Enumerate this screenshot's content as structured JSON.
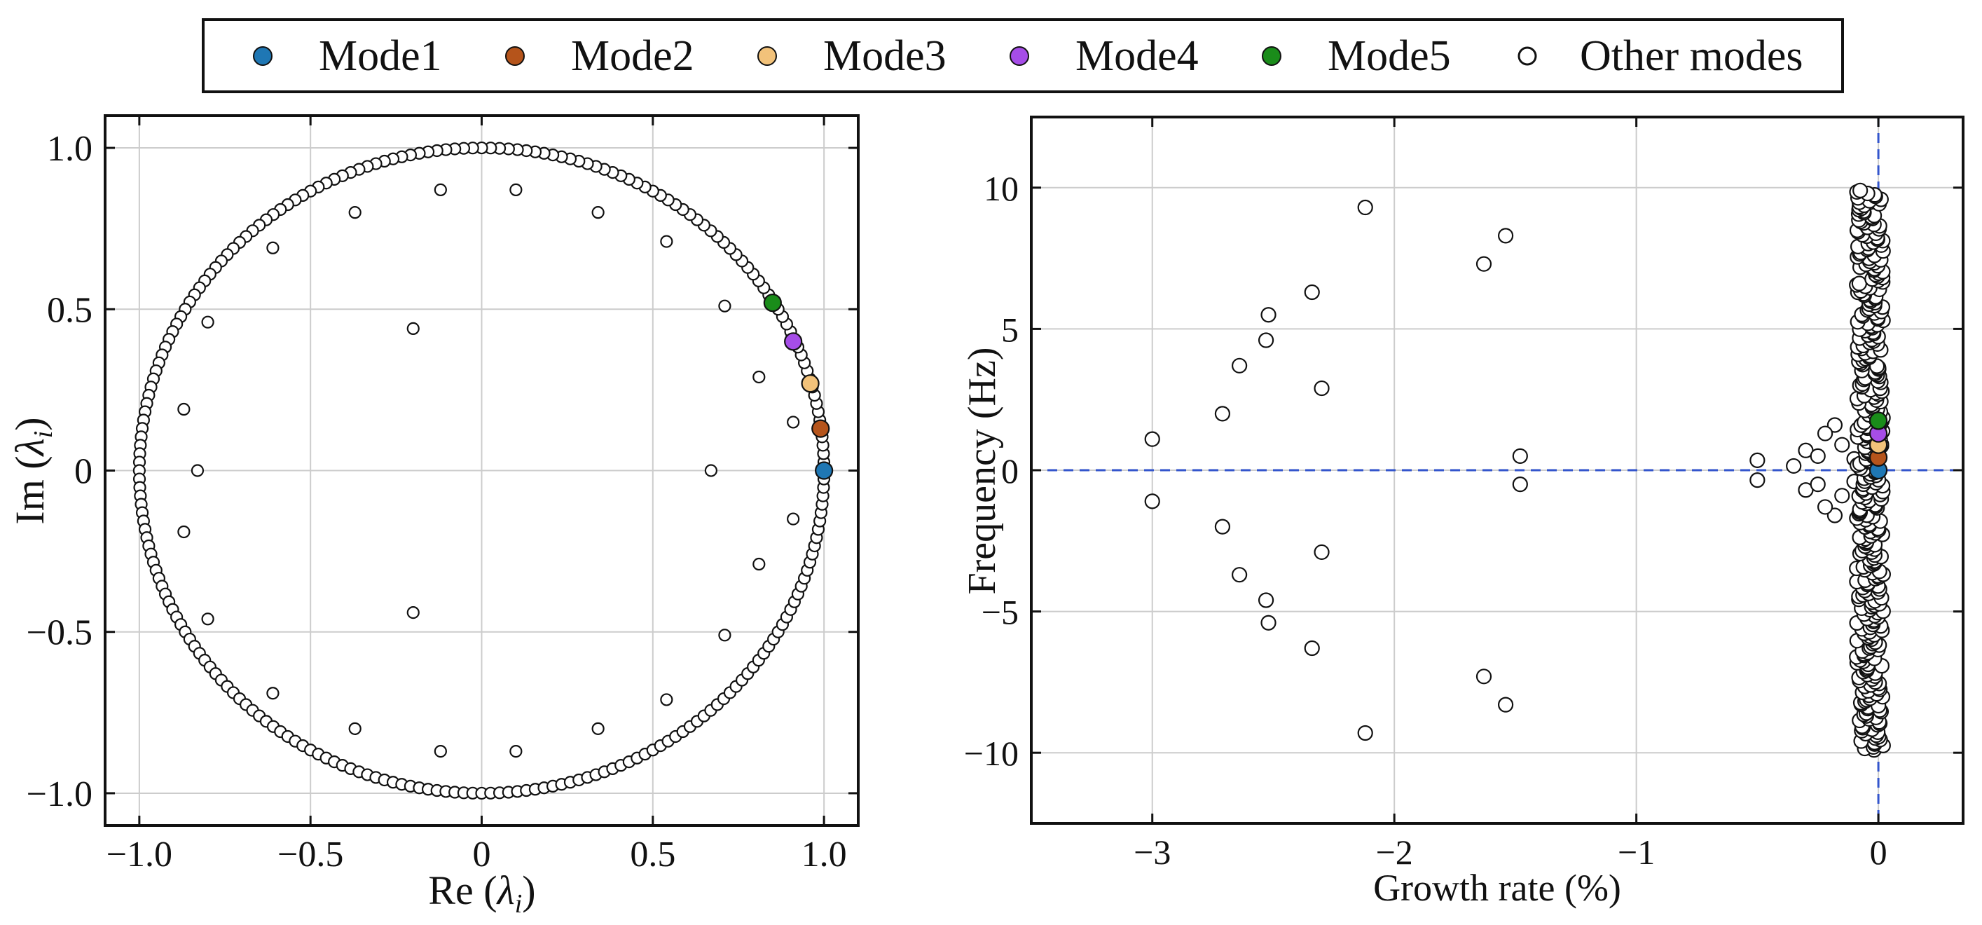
{
  "colors": {
    "mode1": "#1f77b4",
    "mode2": "#b5541b",
    "mode3": "#f2c27a",
    "mode4": "#a64de8",
    "mode5": "#1a8c1a",
    "other_face": "#ffffff",
    "marker_edge": "#111111",
    "grid": "#cccccc",
    "zero_line": "#3355cc"
  },
  "chart_data": [
    {
      "type": "scatter",
      "panel": "left",
      "title": "",
      "xlabel": "Re (λi)",
      "ylabel": "Im (λi)",
      "xlim": [
        -1.1,
        1.1
      ],
      "ylim": [
        -1.1,
        1.1
      ],
      "xticks": [
        -1.0,
        -0.5,
        0,
        0.5,
        1.0
      ],
      "xtick_labels": [
        "−1.0",
        "−0.5",
        "0",
        "0.5",
        "1.0"
      ],
      "yticks": [
        -1.0,
        -0.5,
        0,
        0.5,
        1.0
      ],
      "ytick_labels": [
        "−1.0",
        "−0.5",
        "0",
        "0.5",
        "1.0"
      ],
      "grid": true,
      "unit_circle_points": 240,
      "inner_points": [
        [
          0.1,
          0.87
        ],
        [
          -0.12,
          0.87
        ],
        [
          0.34,
          0.8
        ],
        [
          -0.37,
          0.8
        ],
        [
          0.54,
          0.71
        ],
        [
          -0.61,
          0.69
        ],
        [
          0.71,
          0.51
        ],
        [
          -0.2,
          0.44
        ],
        [
          -0.8,
          0.46
        ],
        [
          0.81,
          0.29
        ],
        [
          -0.87,
          0.19
        ],
        [
          0.91,
          0.15
        ],
        [
          0.67,
          0.0
        ],
        [
          -0.83,
          0.0
        ],
        [
          0.1,
          -0.87
        ],
        [
          -0.12,
          -0.87
        ],
        [
          0.34,
          -0.8
        ],
        [
          -0.37,
          -0.8
        ],
        [
          0.54,
          -0.71
        ],
        [
          -0.61,
          -0.69
        ],
        [
          0.71,
          -0.51
        ],
        [
          -0.2,
          -0.44
        ],
        [
          -0.8,
          -0.46
        ],
        [
          0.81,
          -0.29
        ],
        [
          -0.87,
          -0.19
        ],
        [
          0.91,
          -0.15
        ]
      ],
      "highlighted": [
        {
          "name": "Mode1",
          "x": 1.0,
          "y": 0.0
        },
        {
          "name": "Mode2",
          "x": 0.99,
          "y": 0.13
        },
        {
          "name": "Mode3",
          "x": 0.96,
          "y": 0.27
        },
        {
          "name": "Mode4",
          "x": 0.91,
          "y": 0.4
        },
        {
          "name": "Mode5",
          "x": 0.85,
          "y": 0.52
        }
      ]
    },
    {
      "type": "scatter",
      "panel": "right",
      "title": "",
      "xlabel": "Growth rate (%)",
      "ylabel": "Frequency (Hz)",
      "xlim": [
        -3.5,
        0.35
      ],
      "ylim": [
        -12.5,
        12.5
      ],
      "xticks": [
        -3,
        -2,
        -1,
        0
      ],
      "xtick_labels": [
        "−3",
        "−2",
        "−1",
        "0"
      ],
      "yticks": [
        -10,
        -5,
        0,
        5,
        10
      ],
      "ytick_labels": [
        "−10",
        "−5",
        "0",
        "5",
        "10"
      ],
      "grid": true,
      "reference_lines": {
        "x": 0,
        "y": 0
      },
      "scattered_points": [
        [
          -2.12,
          9.3
        ],
        [
          -1.54,
          8.3
        ],
        [
          -1.63,
          7.3
        ],
        [
          -2.34,
          6.3
        ],
        [
          -2.52,
          5.5
        ],
        [
          -2.53,
          4.6
        ],
        [
          -2.64,
          3.7
        ],
        [
          -2.3,
          2.9
        ],
        [
          -2.71,
          2.0
        ],
        [
          -3.0,
          1.1
        ],
        [
          -1.48,
          0.5
        ],
        [
          -0.5,
          0.35
        ],
        [
          -0.3,
          0.7
        ],
        [
          -0.25,
          0.5
        ],
        [
          -0.18,
          1.6
        ],
        [
          -0.22,
          1.3
        ],
        [
          -0.15,
          0.9
        ],
        [
          -0.1,
          0.4
        ],
        [
          -0.35,
          0.15
        ],
        [
          -2.12,
          -9.3
        ],
        [
          -1.54,
          -8.3
        ],
        [
          -1.63,
          -7.3
        ],
        [
          -2.34,
          -6.3
        ],
        [
          -2.52,
          -5.4
        ],
        [
          -2.53,
          -4.6
        ],
        [
          -2.64,
          -3.7
        ],
        [
          -2.3,
          -2.9
        ],
        [
          -2.71,
          -2.0
        ],
        [
          -3.0,
          -1.1
        ],
        [
          -1.48,
          -0.5
        ],
        [
          -0.5,
          -0.35
        ],
        [
          -0.3,
          -0.7
        ],
        [
          -0.25,
          -0.5
        ],
        [
          -0.18,
          -1.6
        ],
        [
          -0.22,
          -1.3
        ],
        [
          -0.15,
          -0.9
        ],
        [
          -0.1,
          -0.4
        ]
      ],
      "dense_cluster": {
        "x_range": [
          -0.09,
          0.02
        ],
        "y_range": [
          -9.9,
          9.9
        ],
        "count": 380
      },
      "highlighted": [
        {
          "name": "Mode1",
          "x": 0.0,
          "y": 0.0
        },
        {
          "name": "Mode2",
          "x": 0.0,
          "y": 0.45
        },
        {
          "name": "Mode3",
          "x": 0.0,
          "y": 0.9
        },
        {
          "name": "Mode4",
          "x": 0.0,
          "y": 1.3
        },
        {
          "name": "Mode5",
          "x": 0.0,
          "y": 1.75
        }
      ]
    }
  ],
  "legend": {
    "placement": "top-center",
    "entries": [
      {
        "key": "mode1",
        "label": "Mode1"
      },
      {
        "key": "mode2",
        "label": "Mode2"
      },
      {
        "key": "mode3",
        "label": "Mode3"
      },
      {
        "key": "mode4",
        "label": "Mode4"
      },
      {
        "key": "mode5",
        "label": "Mode5"
      },
      {
        "key": "other",
        "label": "Other modes"
      }
    ]
  }
}
